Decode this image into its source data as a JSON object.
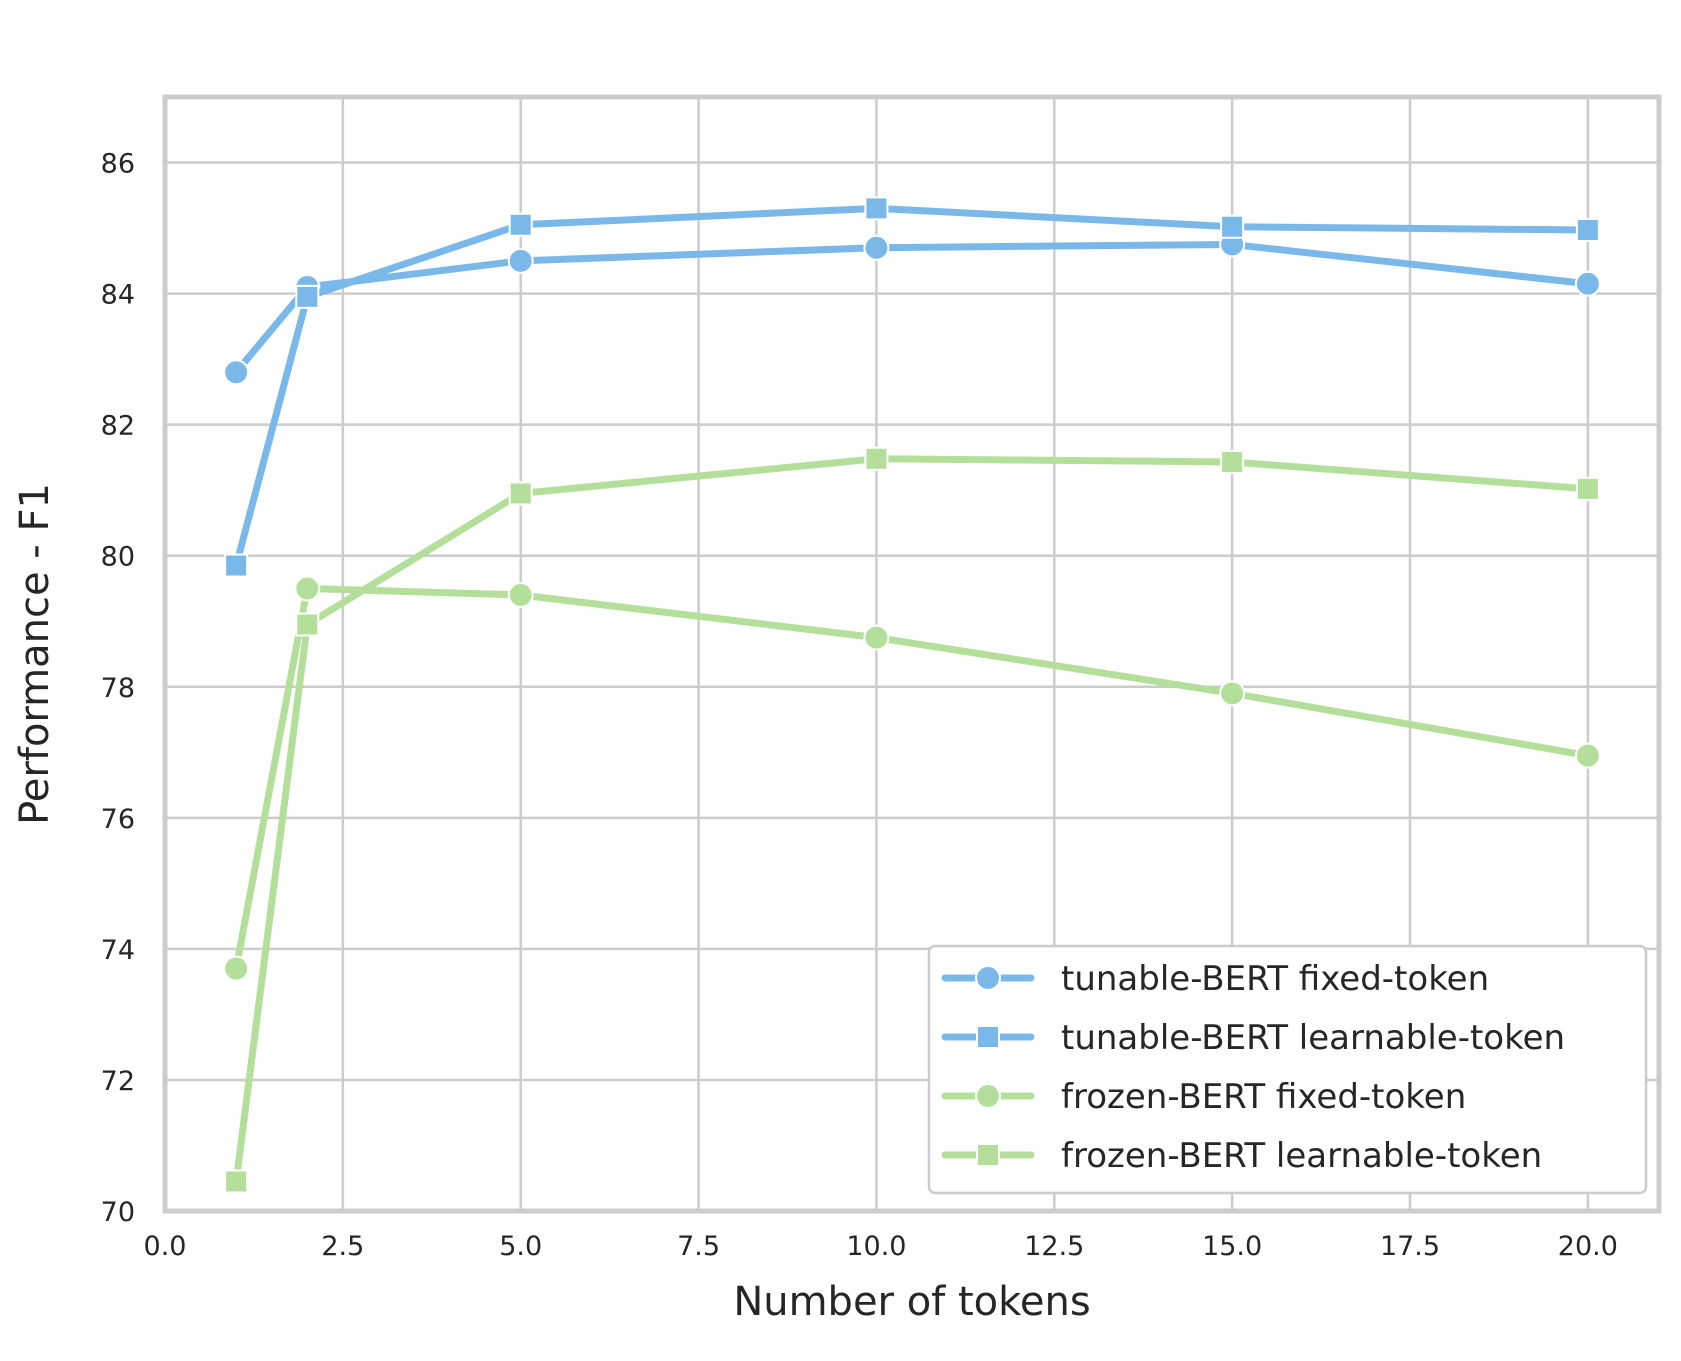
{
  "chart_data": {
    "type": "line",
    "title": "",
    "xlabel": "Number of tokens",
    "ylabel": "Performance - F1",
    "xlim": [
      0.0,
      21.0
    ],
    "ylim": [
      70,
      87
    ],
    "x_ticks": [
      "0.0",
      "2.5",
      "5.0",
      "7.5",
      "10.0",
      "12.5",
      "15.0",
      "17.5",
      "20.0"
    ],
    "y_ticks": [
      "70",
      "72",
      "74",
      "76",
      "78",
      "80",
      "82",
      "84",
      "86"
    ],
    "grid": true,
    "legend_position": "lower-right",
    "x": [
      1,
      2,
      5,
      10,
      15,
      20
    ],
    "series": [
      {
        "name": "tunable-BERT fixed-token",
        "marker": "circle",
        "color": "#7ab8ea",
        "values": [
          82.8,
          84.1,
          84.5,
          84.7,
          84.75,
          84.15
        ]
      },
      {
        "name": "tunable-BERT learnable-token",
        "marker": "square",
        "color": "#7ab8ea",
        "values": [
          79.85,
          83.95,
          85.05,
          85.3,
          85.02,
          84.97
        ]
      },
      {
        "name": "frozen-BERT fixed-token",
        "marker": "circle",
        "color": "#b4df9a",
        "values": [
          73.7,
          79.5,
          79.4,
          78.75,
          77.9,
          76.95
        ]
      },
      {
        "name": "frozen-BERT learnable-token",
        "marker": "square",
        "color": "#b4df9a",
        "values": [
          70.45,
          78.95,
          80.95,
          81.48,
          81.43,
          81.02
        ]
      }
    ]
  }
}
